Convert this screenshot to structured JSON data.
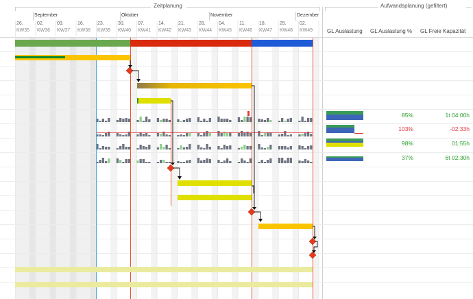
{
  "panels": {
    "timeline_title": "Zeitplanung",
    "effort_title": "Aufwandsplanung (gefiltert)"
  },
  "months": [
    "September",
    "Oktober",
    "November",
    "Dezember"
  ],
  "weeks": [
    {
      "day": "26.",
      "kw": "KW35"
    },
    {
      "day": "02.",
      "kw": "KW36"
    },
    {
      "day": "09.",
      "kw": "KW37"
    },
    {
      "day": "16.",
      "kw": "KW38"
    },
    {
      "day": "23.",
      "kw": "KW39"
    },
    {
      "day": "30.",
      "kw": "KW40"
    },
    {
      "day": "07.",
      "kw": "KW41"
    },
    {
      "day": "14.",
      "kw": "KW42"
    },
    {
      "day": "21.",
      "kw": "KW43"
    },
    {
      "day": "28.",
      "kw": "KW44"
    },
    {
      "day": "04.",
      "kw": "KW45"
    },
    {
      "day": "11.",
      "kw": "KW46"
    },
    {
      "day": "18.",
      "kw": "KW47"
    },
    {
      "day": "25.",
      "kw": "KW48"
    },
    {
      "day": "02.",
      "kw": "KW49"
    }
  ],
  "effort_columns": [
    "GL Auslastung",
    "GL Auslastung %",
    "GL Freie Kapazität"
  ],
  "effort_rows": [
    {
      "percent": "85%",
      "free": "1t 04:00h",
      "status": "ok"
    },
    {
      "percent": "103%",
      "free": "-02:33h",
      "status": "over"
    },
    {
      "percent": "98%",
      "free": "01:55h",
      "status": "ok"
    },
    {
      "percent": "37%",
      "free": "6t 02:30h",
      "status": "ok"
    }
  ],
  "colors": {
    "phase_green": "#6aa84f",
    "phase_red": "#d9290f",
    "phase_blue": "#1f5bd6",
    "task_yellow": "#fbc400",
    "task_lime": "#dfe000",
    "milestone": "#e53a1c",
    "ok": "#2a9d2a",
    "over": "#e0393e"
  },
  "icons": [
    "milestone-diamond-icon"
  ]
}
